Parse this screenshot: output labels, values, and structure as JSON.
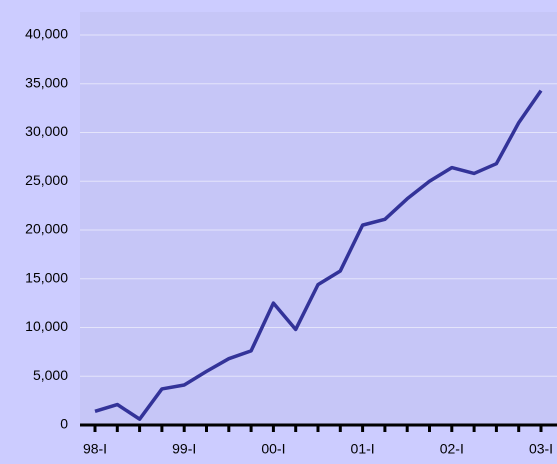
{
  "chart_data": {
    "type": "line",
    "categories": [
      "98-I",
      null,
      null,
      null,
      "99-I",
      null,
      null,
      null,
      "00-I",
      null,
      null,
      null,
      "01-I",
      null,
      null,
      null,
      "02-I",
      null,
      null,
      null,
      "03-I"
    ],
    "series": [
      {
        "color": "#333399",
        "values": [
          1400,
          2100,
          600,
          3700,
          4100,
          5500,
          6800,
          7600,
          12500,
          9800,
          14400,
          15800,
          20500,
          21100,
          23200,
          25000,
          26400,
          25800,
          26800,
          31000,
          34300
        ]
      }
    ],
    "ylim": [
      0,
      40000
    ],
    "yticks": [
      0,
      {
        "value": 5000,
        "label": "5,000"
      },
      {
        "value": 10000,
        "label": "10,000"
      },
      {
        "value": 15000,
        "label": "15,000"
      },
      {
        "value": 20000,
        "label": "20,000"
      },
      {
        "value": 25000,
        "label": "25,000"
      },
      {
        "value": 30000,
        "label": "30,000"
      },
      {
        "value": 35000,
        "label": "35,000"
      },
      {
        "value": 40000,
        "label": "40,000"
      }
    ],
    "grid": true
  }
}
